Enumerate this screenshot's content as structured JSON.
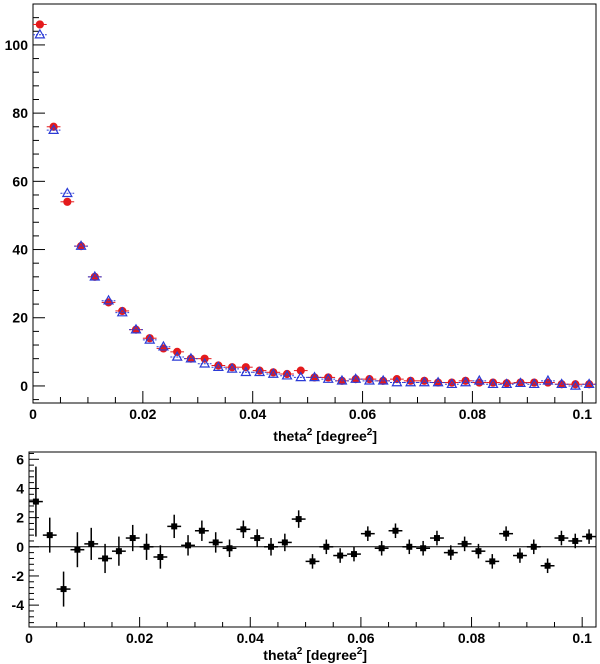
{
  "chart_data": [
    {
      "type": "scatter",
      "panel": "top",
      "xlabel": "theta",
      "xlabel_sup": "2",
      "xlabel_unit": "[degree",
      "xlabel_unit_sup": "2",
      "xlabel_close": "]",
      "xlim": [
        0,
        0.1025
      ],
      "ylim": [
        -5,
        112
      ],
      "xticks": [
        {
          "v": 0,
          "label": "0"
        },
        {
          "v": 0.02,
          "label": "0.02"
        },
        {
          "v": 0.04,
          "label": "0.04"
        },
        {
          "v": 0.06,
          "label": "0.06"
        },
        {
          "v": 0.08,
          "label": "0.08"
        },
        {
          "v": 0.1,
          "label": "0.1"
        }
      ],
      "yticks": [
        {
          "v": 0,
          "label": "0"
        },
        {
          "v": 20,
          "label": "20"
        },
        {
          "v": 40,
          "label": "40"
        },
        {
          "v": 60,
          "label": "60"
        },
        {
          "v": 80,
          "label": "80"
        },
        {
          "v": 100,
          "label": "100"
        }
      ],
      "x": [
        0.00125,
        0.00375,
        0.00625,
        0.00875,
        0.01125,
        0.01375,
        0.01625,
        0.01875,
        0.02125,
        0.02375,
        0.02625,
        0.02875,
        0.03125,
        0.03375,
        0.03625,
        0.03875,
        0.04125,
        0.04375,
        0.04625,
        0.04875,
        0.05125,
        0.05375,
        0.05625,
        0.05875,
        0.06125,
        0.06375,
        0.06625,
        0.06875,
        0.07125,
        0.07375,
        0.07625,
        0.07875,
        0.08125,
        0.08375,
        0.08625,
        0.08875,
        0.09125,
        0.09375,
        0.09625,
        0.09875,
        0.10125
      ],
      "x_halfwidth": 0.00125,
      "series": [
        {
          "name": "red filled circles",
          "marker": "circle",
          "color": "#e41a1c",
          "values": [
            106,
            76,
            54,
            41,
            32,
            24.5,
            22,
            16.5,
            14,
            11,
            10,
            8,
            8,
            6,
            5.5,
            5.5,
            4.5,
            4,
            3.5,
            4.5,
            2.5,
            2.5,
            1.5,
            2,
            2,
            1.5,
            2,
            1.5,
            1.5,
            1,
            1,
            1.5,
            1,
            1,
            0.8,
            1,
            1,
            1,
            0.5,
            0.5,
            0.5
          ]
        },
        {
          "name": "blue open triangles",
          "marker": "triangle-open",
          "color": "#2b3bd6",
          "values": [
            103,
            75,
            56.5,
            41,
            32,
            25,
            21.5,
            16.5,
            13.5,
            11.5,
            8.5,
            8,
            6.5,
            5.5,
            5,
            4,
            4,
            3.5,
            3,
            2.5,
            2.5,
            2,
            1.5,
            2,
            1.5,
            1.5,
            1,
            1,
            1,
            1,
            0.5,
            1,
            1.5,
            0.5,
            0.5,
            0.8,
            0.5,
            1.5,
            0.5,
            0,
            0.5
          ]
        }
      ]
    },
    {
      "type": "scatter",
      "panel": "bottom",
      "xlabel": "theta",
      "xlabel_sup": "2",
      "xlabel_unit": "[degree",
      "xlabel_unit_sup": "2",
      "xlabel_close": "]",
      "xlim": [
        0,
        0.1025
      ],
      "ylim": [
        -5.5,
        6.5
      ],
      "xticks": [
        {
          "v": 0,
          "label": "0"
        },
        {
          "v": 0.02,
          "label": "0.02"
        },
        {
          "v": 0.04,
          "label": "0.04"
        },
        {
          "v": 0.06,
          "label": "0.06"
        },
        {
          "v": 0.08,
          "label": "0.08"
        },
        {
          "v": 0.1,
          "label": "0.1"
        }
      ],
      "yticks": [
        {
          "v": -4,
          "label": "-4"
        },
        {
          "v": -2,
          "label": "-2"
        },
        {
          "v": 0,
          "label": "0"
        },
        {
          "v": 2,
          "label": "2"
        },
        {
          "v": 4,
          "label": "4"
        },
        {
          "v": 6,
          "label": "6"
        }
      ],
      "reference_line": 0,
      "x": [
        0.00125,
        0.00375,
        0.00625,
        0.00875,
        0.01125,
        0.01375,
        0.01625,
        0.01875,
        0.02125,
        0.02375,
        0.02625,
        0.02875,
        0.03125,
        0.03375,
        0.03625,
        0.03875,
        0.04125,
        0.04375,
        0.04625,
        0.04875,
        0.05125,
        0.05375,
        0.05625,
        0.05875,
        0.06125,
        0.06375,
        0.06625,
        0.06875,
        0.07125,
        0.07375,
        0.07625,
        0.07875,
        0.08125,
        0.08375,
        0.08625,
        0.08875,
        0.09125,
        0.09375,
        0.09625,
        0.09875,
        0.10125
      ],
      "x_halfwidth": 0.00125,
      "series": [
        {
          "name": "difference",
          "marker": "square",
          "color": "#000000",
          "values": [
            3.1,
            0.8,
            -2.9,
            -0.2,
            0.2,
            -0.8,
            -0.3,
            0.6,
            0.0,
            -0.7,
            1.4,
            0.1,
            1.1,
            0.3,
            -0.1,
            1.2,
            0.6,
            0.0,
            0.3,
            1.9,
            -1.0,
            0.0,
            -0.6,
            -0.5,
            0.9,
            -0.1,
            1.1,
            0.0,
            -0.1,
            0.6,
            -0.4,
            0.2,
            -0.3,
            -1.0,
            0.9,
            -0.6,
            0.0,
            -1.3,
            0.6,
            0.4,
            0.7
          ],
          "errors": [
            2.4,
            1.2,
            1.2,
            1.2,
            1.1,
            1.0,
            1.0,
            0.9,
            0.9,
            0.8,
            0.8,
            0.7,
            0.7,
            0.7,
            0.6,
            0.6,
            0.6,
            0.6,
            0.6,
            0.6,
            0.5,
            0.5,
            0.5,
            0.5,
            0.5,
            0.5,
            0.5,
            0.5,
            0.5,
            0.5,
            0.5,
            0.5,
            0.5,
            0.5,
            0.5,
            0.5,
            0.5,
            0.5,
            0.5,
            0.5,
            0.5
          ]
        }
      ]
    }
  ]
}
